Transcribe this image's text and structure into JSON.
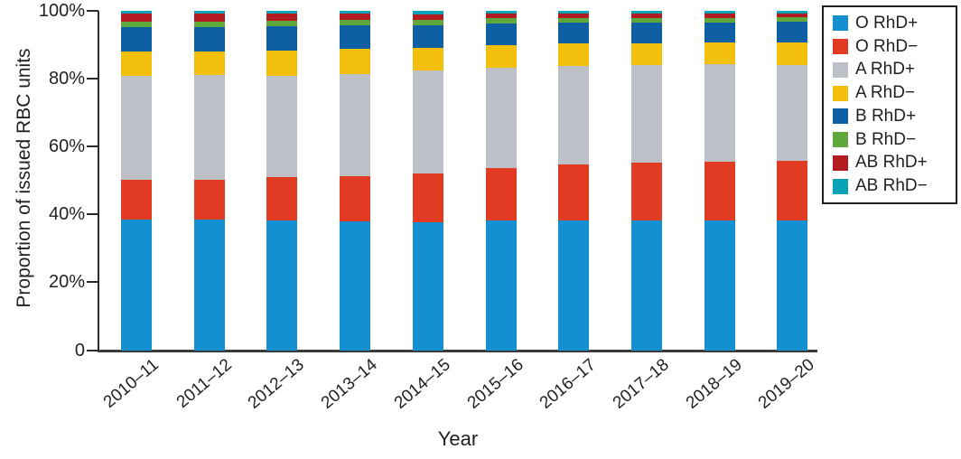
{
  "chart_data": {
    "type": "bar",
    "stacked": true,
    "title": "",
    "xlabel": "Year",
    "ylabel": "Proportion of issued RBC units",
    "ylim": [
      0,
      100
    ],
    "grid": false,
    "legend_position": "outside-upper-right",
    "y_ticks": [
      {
        "label": "0",
        "value": 0
      },
      {
        "label": "20%",
        "value": 20
      },
      {
        "label": "40%",
        "value": 40
      },
      {
        "label": "60%",
        "value": 60
      },
      {
        "label": "80%",
        "value": 80
      },
      {
        "label": "100%",
        "value": 100
      }
    ],
    "categories": [
      "2010–11",
      "2011–12",
      "2012–13",
      "2013–14",
      "2014–15",
      "2015–16",
      "2016–17",
      "2017–18",
      "2018–19",
      "2019–20"
    ],
    "series": [
      {
        "name": "O RhD+",
        "color": "#148fd0",
        "values": [
          38.4,
          38.4,
          38.2,
          37.9,
          37.6,
          38.1,
          38.3,
          38.1,
          38.3,
          38.3
        ]
      },
      {
        "name": "O RhD−",
        "color": "#e23b24",
        "values": [
          11.8,
          11.9,
          12.7,
          13.4,
          14.4,
          15.5,
          16.3,
          17.2,
          17.2,
          17.5
        ]
      },
      {
        "name": "A RhD+",
        "color": "#bec0c8",
        "values": [
          30.7,
          30.7,
          30.0,
          30.1,
          30.3,
          29.5,
          29.2,
          28.8,
          28.7,
          28.3
        ]
      },
      {
        "name": "A RhD−",
        "color": "#f3bf0d",
        "values": [
          7.0,
          7.0,
          7.3,
          7.3,
          6.9,
          6.9,
          6.7,
          6.4,
          6.6,
          6.6
        ]
      },
      {
        "name": "B RhD+",
        "color": "#0f5fa5",
        "values": [
          7.2,
          7.3,
          7.3,
          7.1,
          6.6,
          6.3,
          6.0,
          6.0,
          5.8,
          6.0
        ]
      },
      {
        "name": "B RhD−",
        "color": "#5fa83c",
        "values": [
          1.8,
          1.6,
          1.5,
          1.5,
          1.6,
          1.5,
          1.5,
          1.5,
          1.3,
          1.5
        ]
      },
      {
        "name": "AB RhD+",
        "color": "#b31b22",
        "values": [
          2.2,
          2.2,
          2.1,
          1.8,
          1.6,
          1.4,
          1.2,
          1.2,
          1.2,
          1.0
        ]
      },
      {
        "name": "AB RhD−",
        "color": "#0aa3b5",
        "values": [
          0.9,
          0.9,
          0.9,
          0.9,
          1.0,
          0.8,
          0.8,
          0.8,
          0.9,
          0.8
        ]
      }
    ]
  }
}
